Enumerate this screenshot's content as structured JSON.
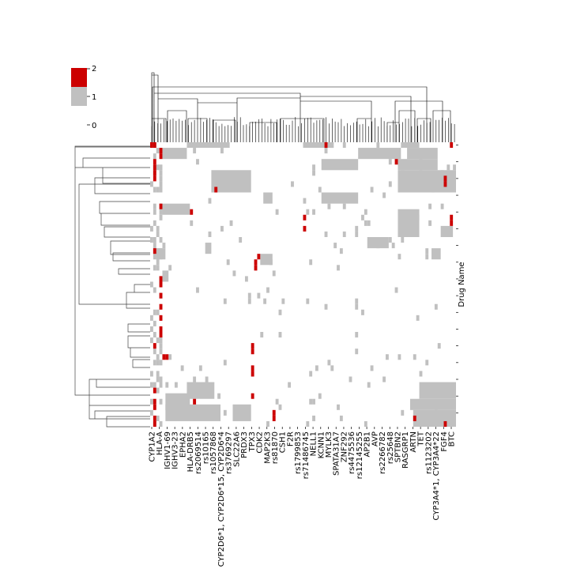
{
  "chart_data": {
    "type": "heatmap",
    "title": "",
    "xlabel": "",
    "ylabel": "Drug Name",
    "colorbar": {
      "ticks": [
        "0",
        "1",
        "2"
      ],
      "levels": [
        {
          "value": 0,
          "color": "#ffffff"
        },
        {
          "value": 1,
          "color": "#c0c0c0"
        },
        {
          "value": 2,
          "color": "#cc0000"
        }
      ]
    },
    "column_labels": [
      "CYP1A2",
      "HLA-A",
      "IGHV1-69",
      "IGHV3-23",
      "EPHA2",
      "HLA-DRB5",
      "rs2069514",
      "rs10165",
      "rs1057868",
      "CYP2D6*1, CYP2D6*15, CYP2D6*4",
      "rs3769297",
      "SLC22A6",
      "PRDX3",
      "TPX3",
      "CDK2",
      "MAP2K3",
      "rs81870",
      "CSH1",
      "F2R",
      "rs1799853",
      "rs71486745",
      "NELL1",
      "KCNN1",
      "MYLK3",
      "SPATA31A7",
      "ZNF292",
      "rs4475536",
      "rs12145255",
      "AP2B1",
      "AVP",
      "rs2266782",
      "rs25648",
      "SPTBN2",
      "RASGRP1",
      "ARTN",
      "TET",
      "rs1123202",
      "CYP3A4*1, CYP3A4*22",
      "FGF4",
      "BTC"
    ],
    "num_rows": 51,
    "num_columns": 100,
    "row_dendrogram": true,
    "column_dendrogram": true,
    "grid": false
  }
}
